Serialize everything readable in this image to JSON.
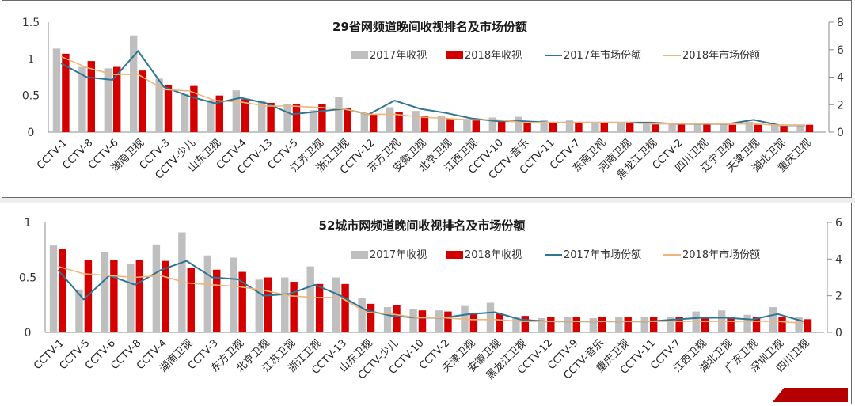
{
  "colors": {
    "bar2017": "#bfbfbf",
    "bar2018": "#d40000",
    "line2017": "#2e7593",
    "line2018": "#f0b47a",
    "axis": "#8c8c8c",
    "text": "#222222"
  },
  "legend": {
    "bar2017": "2017年收视",
    "bar2018": "2018年收视",
    "line2017": "2017年市场份额",
    "line2018": "2018年市场份额"
  },
  "chart_data": [
    {
      "type": "bar",
      "title": "29省网频道晚间收视排名及市场份额",
      "xlabel": "",
      "ylabel": "",
      "ylim": [
        0,
        1.5
      ],
      "y2lim": [
        0,
        8
      ],
      "yticks": [
        "0",
        "0.5",
        "1",
        "1.5"
      ],
      "y2ticks": [
        "0",
        "2",
        "4",
        "6",
        "8"
      ],
      "legend_position": "top-right",
      "grid": false,
      "categories": [
        "CCTV-1",
        "CCTV-8",
        "CCTV-6",
        "湖南卫视",
        "CCTV-3",
        "CCTV-少儿",
        "山东卫视",
        "CCTV-4",
        "CCTV-13",
        "CCTV-5",
        "江苏卫视",
        "浙江卫视",
        "CCTV-12",
        "东方卫视",
        "安徽卫视",
        "北京卫视",
        "江西卫视",
        "CCTV-10",
        "CCTV-音乐",
        "CCTV-11",
        "CCTV-7",
        "东南卫视",
        "河南卫视",
        "黑龙江卫视",
        "CCTV-2",
        "四川卫视",
        "辽宁卫视",
        "天津卫视",
        "湖北卫视",
        "重庆卫视"
      ],
      "series": [
        {
          "name": "2017年收视",
          "type": "bar",
          "axis": "left",
          "values": [
            1.14,
            0.89,
            0.87,
            1.32,
            0.73,
            0.52,
            0.44,
            0.57,
            0.42,
            0.38,
            0.3,
            0.48,
            0.26,
            0.34,
            0.29,
            0.22,
            0.18,
            0.2,
            0.21,
            0.17,
            0.16,
            0.14,
            0.14,
            0.14,
            0.13,
            0.13,
            0.13,
            0.14,
            0.11,
            0.1
          ]
        },
        {
          "name": "2018年收视",
          "type": "bar",
          "axis": "left",
          "values": [
            1.07,
            0.97,
            0.89,
            0.84,
            0.64,
            0.63,
            0.5,
            0.45,
            0.4,
            0.38,
            0.38,
            0.33,
            0.25,
            0.27,
            0.22,
            0.18,
            0.16,
            0.16,
            0.13,
            0.13,
            0.12,
            0.12,
            0.12,
            0.11,
            0.11,
            0.11,
            0.1,
            0.1,
            0.09,
            0.1
          ]
        },
        {
          "name": "2017年市场份额",
          "type": "line",
          "axis": "right",
          "values": [
            5.0,
            4.0,
            3.8,
            5.9,
            3.3,
            2.6,
            2.1,
            2.5,
            2.1,
            1.3,
            1.5,
            1.7,
            1.3,
            2.3,
            1.7,
            1.4,
            1.0,
            0.8,
            0.8,
            0.7,
            0.7,
            0.7,
            0.7,
            0.7,
            0.6,
            0.6,
            0.6,
            0.9,
            0.5,
            0.5
          ]
        },
        {
          "name": "2018年市场份额",
          "type": "line",
          "axis": "right",
          "values": [
            5.5,
            4.7,
            4.2,
            4.2,
            3.1,
            3.0,
            2.3,
            2.2,
            1.9,
            1.9,
            1.8,
            1.7,
            1.3,
            1.3,
            1.1,
            1.0,
            0.9,
            0.9,
            0.7,
            0.7,
            0.7,
            0.7,
            0.7,
            0.6,
            0.6,
            0.6,
            0.6,
            0.6,
            0.5,
            0.5
          ]
        }
      ]
    },
    {
      "type": "bar",
      "title": "52城市网频道晚间收视排名及市场份额",
      "xlabel": "",
      "ylabel": "",
      "ylim": [
        0,
        1
      ],
      "y2lim": [
        0,
        6
      ],
      "yticks": [
        "0",
        "0.5",
        "1"
      ],
      "y2ticks": [
        "0",
        "2",
        "4",
        "6"
      ],
      "legend_position": "top-right",
      "grid": false,
      "categories": [
        "CCTV-1",
        "CCTV-5",
        "CCTV-6",
        "CCTV-8",
        "CCTV-4",
        "湖南卫视",
        "CCTV-3",
        "东方卫视",
        "北京卫视",
        "江苏卫视",
        "浙江卫视",
        "CCTV-13",
        "山东卫视",
        "CCTV-少儿",
        "CCTV-10",
        "CCTV-2",
        "天津卫视",
        "安徽卫视",
        "黑龙江卫视",
        "CCTV-12",
        "CCTV-9",
        "CCTV-音乐",
        "重庆卫视",
        "CCTV-11",
        "CCTV-7",
        "江西卫视",
        "湖北卫视",
        "广东卫视",
        "深圳卫视",
        "四川卫视"
      ],
      "series": [
        {
          "name": "2017年收视",
          "type": "bar",
          "axis": "left",
          "values": [
            0.79,
            0.39,
            0.73,
            0.62,
            0.8,
            0.91,
            0.7,
            0.68,
            0.48,
            0.5,
            0.6,
            0.5,
            0.31,
            0.23,
            0.21,
            0.2,
            0.24,
            0.27,
            0.14,
            0.13,
            0.14,
            0.13,
            0.14,
            0.14,
            0.14,
            0.19,
            0.2,
            0.16,
            0.23,
            0.14
          ]
        },
        {
          "name": "2018年收视",
          "type": "bar",
          "axis": "left",
          "values": [
            0.76,
            0.66,
            0.66,
            0.66,
            0.65,
            0.59,
            0.57,
            0.55,
            0.5,
            0.46,
            0.44,
            0.44,
            0.26,
            0.25,
            0.2,
            0.19,
            0.17,
            0.17,
            0.15,
            0.14,
            0.14,
            0.14,
            0.14,
            0.14,
            0.14,
            0.14,
            0.14,
            0.14,
            0.14,
            0.12
          ]
        },
        {
          "name": "2017年市场份额",
          "type": "line",
          "axis": "right",
          "values": [
            3.4,
            1.8,
            3.1,
            2.6,
            3.4,
            3.9,
            3.0,
            2.9,
            2.0,
            2.1,
            2.6,
            2.0,
            1.2,
            0.9,
            0.8,
            0.8,
            1.0,
            1.1,
            0.7,
            0.6,
            0.6,
            0.6,
            0.6,
            0.6,
            0.7,
            0.8,
            0.8,
            0.7,
            1.0,
            0.6
          ]
        },
        {
          "name": "2018年市场份额",
          "type": "line",
          "axis": "right",
          "values": [
            3.6,
            3.2,
            3.1,
            3.0,
            3.1,
            2.7,
            2.6,
            2.5,
            2.3,
            2.0,
            1.9,
            1.9,
            1.1,
            1.0,
            0.8,
            0.8,
            0.7,
            0.7,
            0.6,
            0.6,
            0.6,
            0.6,
            0.6,
            0.6,
            0.6,
            0.6,
            0.6,
            0.6,
            0.6,
            0.5
          ]
        }
      ]
    }
  ]
}
